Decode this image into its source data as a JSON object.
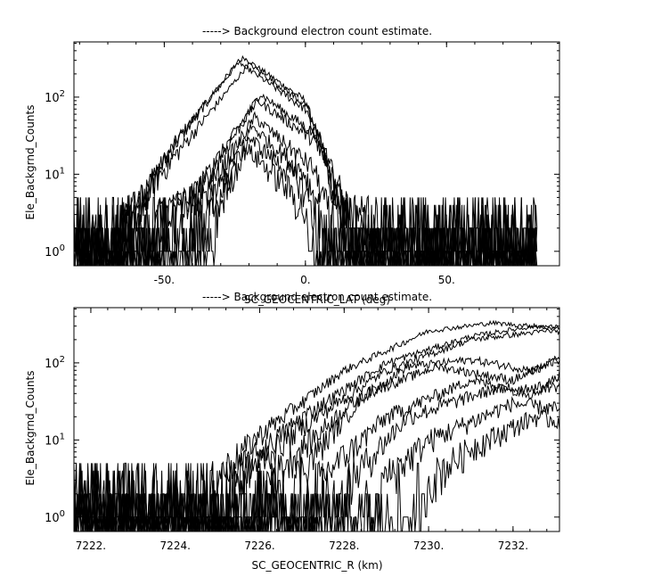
{
  "chart_data": [
    {
      "type": "line",
      "title": "-----> Background electron count estimate.",
      "xlabel": "SC_GEOCENTRIC_LAT (deg)",
      "ylabel": "Ele_Backgrnd_Counts",
      "xlim": [
        -82,
        90
      ],
      "ylim": [
        0.65,
        520
      ],
      "yscale": "log",
      "x_ticks": [
        -50,
        0,
        50
      ],
      "x_tick_labels": [
        "-50.",
        "0.",
        "50."
      ],
      "y_ticks": [
        1,
        10,
        100
      ],
      "y_tick_labels": [
        "10^0",
        "10^1",
        "10^2"
      ],
      "grid": false,
      "x_range_data": [
        -82,
        82
      ],
      "series": [
        {
          "peak_x": -22,
          "peak_y": 330,
          "half_width": 32,
          "values": [
            [
              -82,
              1
            ],
            [
              -60,
              4
            ],
            [
              -45,
              30
            ],
            [
              -22,
              330
            ],
            [
              0,
              90
            ],
            [
              10,
              8
            ],
            [
              20,
              1
            ],
            [
              82,
              1
            ]
          ]
        },
        {
          "peak_x": -24,
          "peak_y": 290,
          "half_width": 30,
          "values": [
            [
              -82,
              1
            ],
            [
              -60,
              4
            ],
            [
              -46,
              25
            ],
            [
              -24,
              290
            ],
            [
              0,
              70
            ],
            [
              10,
              6
            ],
            [
              20,
              1
            ],
            [
              82,
              1
            ]
          ]
        },
        {
          "peak_x": -20,
          "peak_y": 270,
          "half_width": 31,
          "values": [
            [
              -82,
              1
            ],
            [
              -60,
              4
            ],
            [
              -44,
              22
            ],
            [
              -20,
              270
            ],
            [
              0,
              80
            ],
            [
              12,
              7
            ],
            [
              20,
              1
            ],
            [
              82,
              1
            ]
          ]
        },
        {
          "peak_x": -16,
          "peak_y": 110,
          "half_width": 28,
          "values": [
            [
              -82,
              1
            ],
            [
              -40,
              5
            ],
            [
              -16,
              110
            ],
            [
              5,
              30
            ],
            [
              12,
              4
            ],
            [
              82,
              1
            ]
          ]
        },
        {
          "peak_x": -17,
          "peak_y": 90,
          "half_width": 27,
          "values": [
            [
              -82,
              1
            ],
            [
              -40,
              5
            ],
            [
              -17,
              90
            ],
            [
              5,
              25
            ],
            [
              12,
              3
            ],
            [
              82,
              1
            ]
          ]
        },
        {
          "peak_x": -18,
          "peak_y": 55,
          "half_width": 24,
          "values": [
            [
              -82,
              1
            ],
            [
              -38,
              4
            ],
            [
              -18,
              55
            ],
            [
              3,
              12
            ],
            [
              10,
              2
            ],
            [
              82,
              1
            ]
          ]
        },
        {
          "peak_x": -19,
          "peak_y": 42,
          "half_width": 22,
          "values": [
            [
              -82,
              1
            ],
            [
              -36,
              3
            ],
            [
              -19,
              42
            ],
            [
              0,
              10
            ],
            [
              8,
              2
            ],
            [
              82,
              1
            ]
          ]
        },
        {
          "peak_x": -20,
          "peak_y": 30,
          "half_width": 20,
          "values": [
            [
              -82,
              1
            ],
            [
              -34,
              3
            ],
            [
              -20,
              30
            ],
            [
              -2,
              8
            ],
            [
              6,
              2
            ],
            [
              82,
              1
            ]
          ]
        },
        {
          "peak_x": -21,
          "peak_y": 22,
          "half_width": 17,
          "values": [
            [
              -82,
              1
            ],
            [
              -32,
              3
            ],
            [
              -21,
              22
            ],
            [
              -5,
              6
            ],
            [
              4,
              2
            ],
            [
              82,
              1
            ]
          ]
        }
      ]
    },
    {
      "type": "line",
      "title": "-----> Background electron count estimate.",
      "xlabel": "SC_GEOCENTRIC_R (km)",
      "ylabel": "Ele_Backgrnd_Counts",
      "xlim": [
        7221.6,
        7233.1
      ],
      "ylim": [
        0.65,
        520
      ],
      "yscale": "log",
      "x_ticks": [
        7222,
        7224,
        7226,
        7228,
        7230,
        7232
      ],
      "x_tick_labels": [
        "7222.",
        "7224.",
        "7226.",
        "7228.",
        "7230.",
        "7232."
      ],
      "y_ticks": [
        1,
        10,
        100
      ],
      "y_tick_labels": [
        "10^0",
        "10^1",
        "10^2"
      ],
      "grid": false,
      "x_range_data": [
        7221.6,
        7233.1
      ],
      "series": [
        {
          "start_x": 7224.5,
          "peak_x": 7231.5,
          "peak_y": 330,
          "values": [
            [
              7224.5,
              2
            ],
            [
              7226,
              12
            ],
            [
              7228,
              80
            ],
            [
              7230,
              260
            ],
            [
              7231.5,
              330
            ],
            [
              7233.1,
              280
            ]
          ]
        },
        {
          "start_x": 7224.8,
          "peak_x": 7232.5,
          "peak_y": 300,
          "values": [
            [
              7224.8,
              2
            ],
            [
              7227,
              20
            ],
            [
              7229,
              100
            ],
            [
              7231,
              220
            ],
            [
              7232.5,
              300
            ],
            [
              7233.1,
              290
            ]
          ]
        },
        {
          "start_x": 7225.0,
          "peak_x": 7232.8,
          "peak_y": 260,
          "values": [
            [
              7225,
              2
            ],
            [
              7227,
              15
            ],
            [
              7229,
              80
            ],
            [
              7231,
              200
            ],
            [
              7232.8,
              260
            ],
            [
              7233.1,
              255
            ]
          ]
        },
        {
          "start_x": 7225.8,
          "peak_x": 7231.0,
          "peak_y": 110,
          "values": [
            [
              7225.8,
              2
            ],
            [
              7228,
              25
            ],
            [
              7229.5,
              90
            ],
            [
              7231,
              110
            ],
            [
              7232.5,
              80
            ],
            [
              7233.1,
              120
            ]
          ]
        },
        {
          "start_x": 7226.5,
          "peak_x": 7230.2,
          "peak_y": 90,
          "values": [
            [
              7226.5,
              2
            ],
            [
              7228.5,
              40
            ],
            [
              7230.2,
              90
            ],
            [
              7232,
              60
            ],
            [
              7233.1,
              110
            ]
          ]
        },
        {
          "start_x": 7227.0,
          "peak_x": 7231.0,
          "peak_y": 60,
          "values": [
            [
              7227,
              2
            ],
            [
              7229,
              20
            ],
            [
              7231,
              60
            ],
            [
              7232.5,
              40
            ],
            [
              7233.1,
              70
            ]
          ]
        },
        {
          "start_x": 7227.8,
          "peak_x": 7231.5,
          "peak_y": 45,
          "values": [
            [
              7227.8,
              2
            ],
            [
              7229.5,
              20
            ],
            [
              7231.5,
              45
            ],
            [
              7233.1,
              50
            ]
          ]
        },
        {
          "start_x": 7228.5,
          "peak_x": 7232.0,
          "peak_y": 30,
          "values": [
            [
              7228.5,
              2
            ],
            [
              7230,
              10
            ],
            [
              7232,
              30
            ],
            [
              7233.1,
              25
            ]
          ]
        },
        {
          "start_x": 7229.5,
          "peak_x": 7232.5,
          "peak_y": 20,
          "values": [
            [
              7229.5,
              2
            ],
            [
              7231,
              8
            ],
            [
              7232.5,
              20
            ],
            [
              7233.1,
              18
            ]
          ]
        }
      ]
    }
  ]
}
